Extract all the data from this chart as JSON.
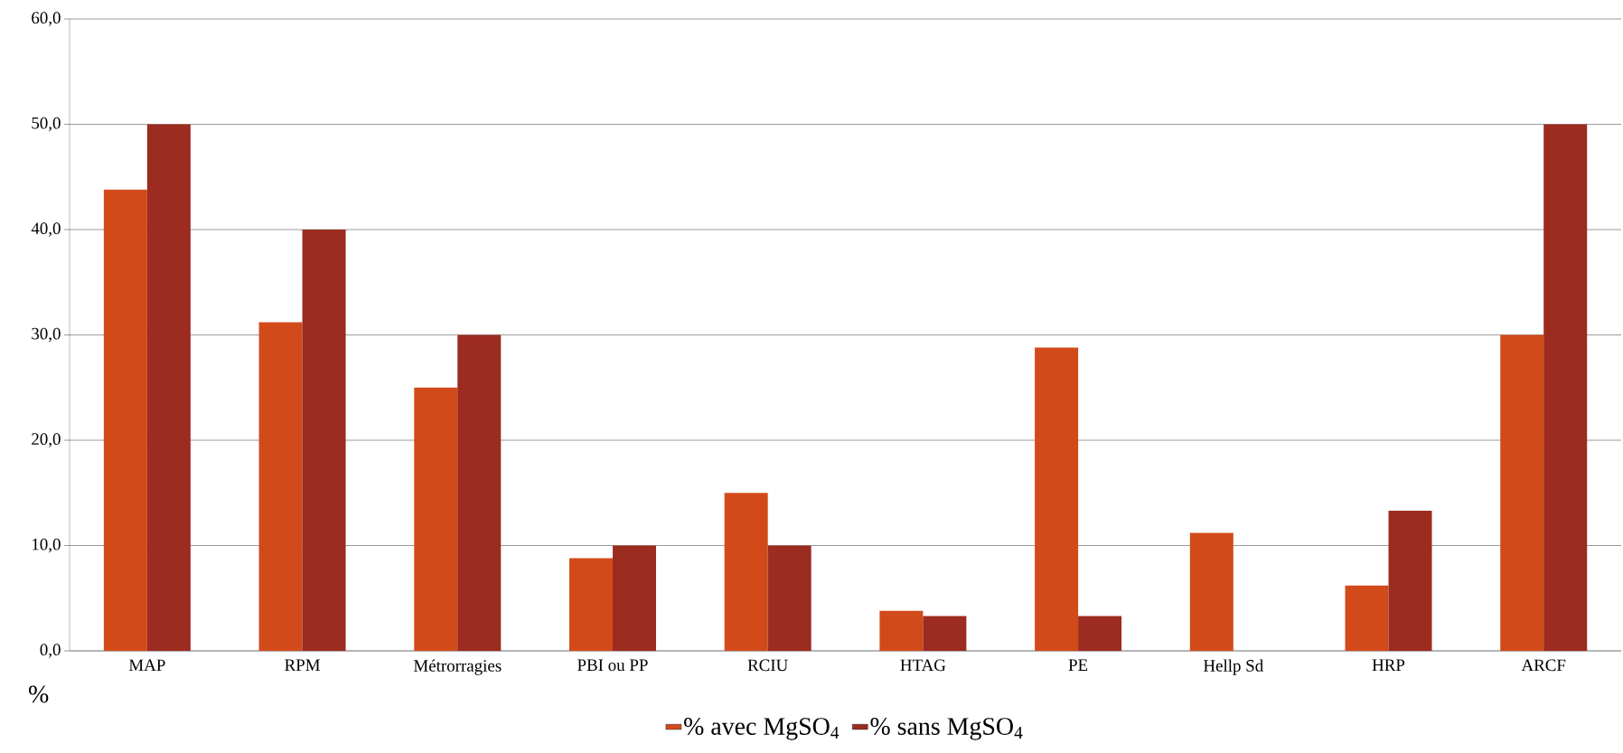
{
  "chart_data": {
    "type": "bar",
    "categories": [
      "MAP",
      "RPM",
      "Métrorragies",
      "PBI ou PP",
      "RCIU",
      "HTAG",
      "PE",
      "Hellp Sd",
      "HRP",
      "ARCF"
    ],
    "series": [
      {
        "name": "% avec MgSO$_{4}$",
        "color": "#d24a1a",
        "values": [
          43.8,
          31.2,
          25.0,
          8.8,
          15.0,
          3.8,
          28.8,
          11.2,
          6.2,
          30.0
        ]
      },
      {
        "name": "% sans MgSO$_{4}$",
        "color": "#9c2b20",
        "values": [
          50.0,
          40.0,
          30.0,
          10.0,
          10.0,
          3.3,
          3.3,
          0.0,
          13.3,
          50.0
        ]
      }
    ],
    "ylabel": "%",
    "ylim": [
      0,
      60
    ],
    "yticks": [
      {
        "value": 0,
        "label": "0,0"
      },
      {
        "value": 10,
        "label": "10,0"
      },
      {
        "value": 20,
        "label": "20,0"
      },
      {
        "value": 30,
        "label": "30,0"
      },
      {
        "value": 40,
        "label": "40,0"
      },
      {
        "value": 50,
        "label": "50,0"
      },
      {
        "value": 60,
        "label": "60,0"
      }
    ],
    "grid": "y",
    "legend": "bottom"
  }
}
